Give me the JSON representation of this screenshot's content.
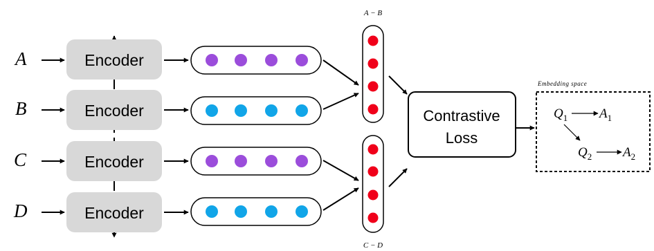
{
  "inputs": [
    {
      "label": "A",
      "encoder": "Encoder",
      "dot_color": "#9b4ddb"
    },
    {
      "label": "B",
      "encoder": "Encoder",
      "dot_color": "#11a5e8"
    },
    {
      "label": "C",
      "encoder": "Encoder",
      "dot_color": "#9b4ddb"
    },
    {
      "label": "D",
      "encoder": "Encoder",
      "dot_color": "#11a5e8"
    }
  ],
  "dots_per_vector": 4,
  "differences": [
    {
      "label": "A − B",
      "dot_color": "#f0001a"
    },
    {
      "label": "C − D",
      "dot_color": "#f0001a"
    }
  ],
  "loss": {
    "line1": "Contrastive",
    "line2": "Loss"
  },
  "embedding_space": {
    "title": "Embedding space",
    "q1": "Q",
    "q1_sub": "1",
    "a1": "A",
    "a1_sub": "1",
    "q2": "Q",
    "q2_sub": "2",
    "a2": "A",
    "a2_sub": "2"
  },
  "colors": {
    "encoder_fill": "#d8d8d8",
    "purple": "#9b4ddb",
    "blue": "#11a5e8",
    "red": "#f0001a"
  }
}
